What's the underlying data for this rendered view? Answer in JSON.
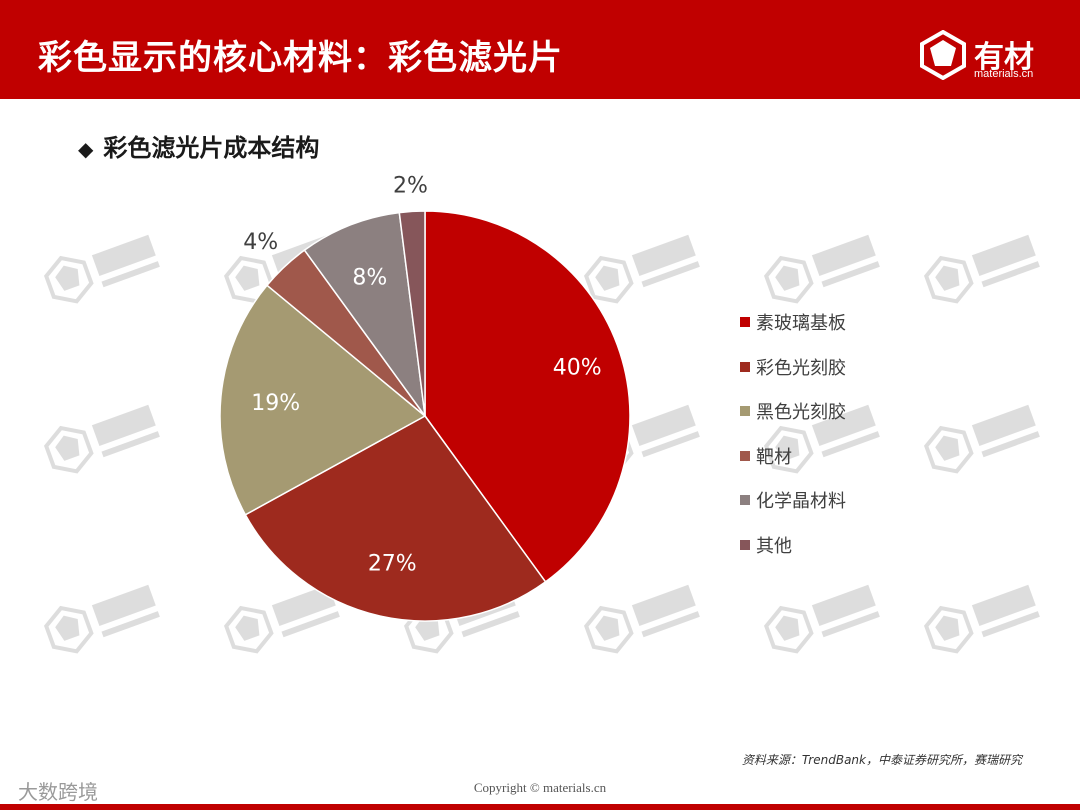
{
  "header": {
    "title": "彩色显示的核心材料：彩色滤光片",
    "logo_text": "有材",
    "logo_sub": "materials.cn"
  },
  "section": {
    "bullet": "◆",
    "title": "彩色滤光片成本结构"
  },
  "chart_data": {
    "type": "pie",
    "title": "",
    "start_angle_deg": 0,
    "direction": "clockwise",
    "legend_position": "right",
    "slices": [
      {
        "name": "素玻璃基板",
        "value": 40,
        "label": "40%",
        "color": "#c00000"
      },
      {
        "name": "彩色光刻胶",
        "value": 27,
        "label": "27%",
        "color": "#9e2a1e"
      },
      {
        "name": "黑色光刻胶",
        "value": 19,
        "label": "19%",
        "color": "#a59a72"
      },
      {
        "name": "靶材",
        "value": 4,
        "label": "4%",
        "color": "#a0584b"
      },
      {
        "name": "化学晶材料",
        "value": 8,
        "label": "8%",
        "color": "#8c8080"
      },
      {
        "name": "其他",
        "value": 2,
        "label": "2%",
        "color": "#86565a"
      }
    ]
  },
  "footer": {
    "source": "资料来源：TrendBank，中泰证券研究所，赛瑞研究",
    "copyright": "Copyright © materials.cn",
    "corner_mark": "大数跨境"
  },
  "colors": {
    "brand": "#c00000"
  }
}
